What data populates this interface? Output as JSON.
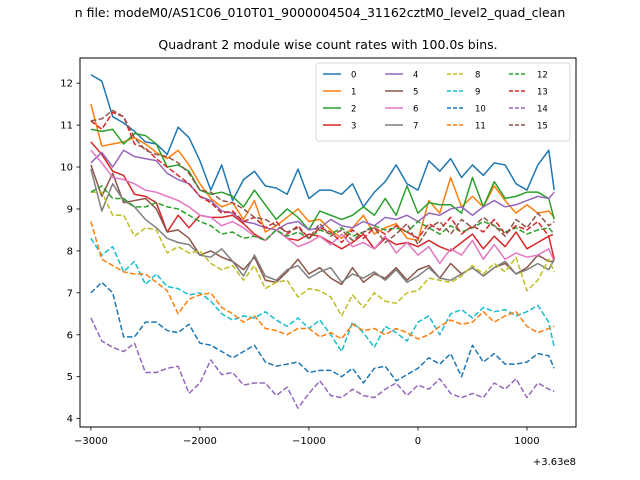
{
  "figure": {
    "suptitle": "n file: modeM0/AS1C06_010T01_9000004504_31162cztM0_level2_quad_clean",
    "title": "Quadrant 2 module wise count rates with 100.0s bins.",
    "x_offset_label": "+3.63e8"
  },
  "chart_data": {
    "type": "line",
    "title": "Quadrant 2 module wise count rates with 100.0s bins.",
    "xlabel": "",
    "ylabel": "",
    "x_offset": 363000000,
    "xlim": [
      -3100,
      1450
    ],
    "ylim": [
      3.8,
      12.6
    ],
    "x_ticks": [
      -3000,
      -2000,
      -1000,
      0,
      1000
    ],
    "x_tick_labels": [
      "−3000",
      "−2000",
      "−1000",
      "0",
      "1000"
    ],
    "y_ticks": [
      4,
      5,
      6,
      7,
      8,
      9,
      10,
      11,
      12
    ],
    "y_tick_labels": [
      "4",
      "5",
      "6",
      "7",
      "8",
      "9",
      "10",
      "11",
      "12"
    ],
    "grid": false,
    "legend_position": "top-right",
    "x": [
      -3000,
      -2900,
      -2800,
      -2700,
      -2600,
      -2500,
      -2400,
      -2300,
      -2200,
      -2100,
      -2000,
      -1900,
      -1800,
      -1700,
      -1600,
      -1500,
      -1400,
      -1300,
      -1200,
      -1100,
      -1000,
      -900,
      -800,
      -700,
      -600,
      -500,
      -400,
      -300,
      -200,
      -100,
      0,
      100,
      200,
      300,
      400,
      500,
      600,
      700,
      800,
      900,
      1000,
      1100,
      1200,
      1250
    ],
    "series": [
      {
        "name": "0",
        "color": "#1f77b4",
        "style": "solid",
        "values": [
          12.2,
          12.05,
          11.2,
          11.05,
          10.85,
          10.6,
          10.55,
          10.3,
          10.95,
          10.7,
          10.15,
          9.45,
          10.05,
          9.2,
          9.7,
          9.9,
          9.55,
          9.5,
          9.35,
          9.95,
          9.25,
          9.45,
          9.45,
          9.35,
          9.6,
          9.05,
          9.4,
          9.65,
          10.05,
          9.6,
          9.45,
          10.15,
          9.9,
          10.2,
          9.75,
          10.05,
          9.8,
          10.1,
          10.05,
          9.6,
          9.45,
          10.05,
          10.4,
          9.45
        ]
      },
      {
        "name": "1",
        "color": "#ff7f0e",
        "style": "solid",
        "values": [
          11.5,
          10.5,
          10.55,
          10.6,
          10.7,
          10.55,
          10.35,
          10.2,
          10.4,
          10.05,
          9.6,
          9.25,
          9.05,
          9.15,
          8.75,
          9.2,
          8.45,
          8.6,
          8.8,
          9.0,
          8.7,
          8.75,
          8.5,
          8.3,
          8.55,
          8.85,
          8.4,
          8.55,
          8.65,
          8.3,
          8.25,
          9.2,
          8.9,
          9.75,
          9.05,
          9.3,
          9.05,
          9.55,
          9.2,
          8.9,
          9.1,
          8.9,
          8.95,
          8.8
        ]
      },
      {
        "name": "2",
        "color": "#2ca02c",
        "style": "solid",
        "values": [
          10.9,
          10.85,
          10.9,
          10.55,
          10.8,
          10.75,
          10.55,
          10.0,
          10.05,
          9.9,
          9.45,
          9.35,
          9.4,
          9.3,
          9.05,
          9.45,
          9.1,
          8.75,
          9.0,
          8.8,
          8.5,
          8.95,
          8.85,
          8.75,
          8.85,
          9.05,
          8.85,
          9.25,
          8.85,
          9.55,
          8.9,
          9.15,
          9.1,
          9.1,
          8.9,
          9.75,
          9.05,
          9.65,
          9.25,
          9.3,
          9.4,
          9.4,
          9.25,
          8.75
        ]
      },
      {
        "name": "3",
        "color": "#d62728",
        "style": "solid",
        "values": [
          10.6,
          10.3,
          9.9,
          9.8,
          9.35,
          9.3,
          9.15,
          8.45,
          8.85,
          8.55,
          8.85,
          8.8,
          8.8,
          8.85,
          8.65,
          8.4,
          8.25,
          8.5,
          8.3,
          8.25,
          8.4,
          8.35,
          8.2,
          8.05,
          8.2,
          8.4,
          8.05,
          8.3,
          8.15,
          8.2,
          8.1,
          8.25,
          8.1,
          8.0,
          8.2,
          8.4,
          8.05,
          8.35,
          8.1,
          8.45,
          8.05,
          8.2,
          8.35,
          7.8
        ]
      },
      {
        "name": "4",
        "color": "#9467bd",
        "style": "solid",
        "values": [
          10.1,
          10.35,
          10.0,
          10.4,
          10.25,
          10.2,
          10.15,
          9.85,
          9.7,
          9.6,
          9.3,
          9.2,
          8.95,
          8.9,
          8.7,
          8.65,
          8.55,
          8.5,
          8.65,
          8.7,
          8.5,
          8.55,
          8.75,
          8.6,
          8.55,
          8.7,
          8.6,
          8.8,
          8.75,
          8.85,
          8.7,
          8.9,
          8.85,
          9.0,
          9.05,
          8.85,
          9.05,
          9.2,
          9.05,
          9.1,
          9.2,
          9.3,
          9.25,
          9.4
        ]
      },
      {
        "name": "5",
        "color": "#8c564b",
        "style": "solid",
        "values": [
          10.05,
          9.3,
          9.85,
          9.15,
          9.2,
          9.25,
          9.0,
          8.45,
          8.5,
          8.3,
          7.9,
          8.0,
          7.85,
          7.75,
          7.55,
          7.85,
          7.3,
          7.25,
          7.5,
          7.8,
          7.45,
          7.6,
          7.35,
          7.2,
          7.6,
          7.25,
          7.45,
          7.35,
          7.6,
          7.3,
          7.55,
          7.65,
          7.35,
          7.7,
          7.45,
          7.6,
          7.4,
          7.6,
          7.7,
          7.45,
          7.6,
          7.9,
          7.75,
          7.75
        ]
      },
      {
        "name": "6",
        "color": "#e377c2",
        "style": "solid",
        "values": [
          10.4,
          10.1,
          9.75,
          9.7,
          9.6,
          9.45,
          9.4,
          9.3,
          9.2,
          9.05,
          8.85,
          8.8,
          8.6,
          8.7,
          8.55,
          8.35,
          8.25,
          8.5,
          8.3,
          8.1,
          8.2,
          8.35,
          8.15,
          8.4,
          8.1,
          8.2,
          8.05,
          8.35,
          7.95,
          8.2,
          7.9,
          8.1,
          7.7,
          8.05,
          7.9,
          8.25,
          7.8,
          8.15,
          7.8,
          7.95,
          7.85,
          7.9,
          8.05,
          7.75
        ]
      },
      {
        "name": "7",
        "color": "#7f7f7f",
        "style": "solid",
        "values": [
          9.95,
          8.95,
          9.6,
          9.2,
          9.05,
          8.75,
          8.55,
          8.3,
          8.2,
          8.15,
          7.9,
          7.85,
          8.05,
          7.75,
          7.4,
          7.9,
          7.4,
          7.3,
          7.55,
          7.65,
          7.35,
          7.5,
          7.6,
          7.25,
          7.45,
          7.35,
          7.5,
          7.3,
          7.55,
          7.25,
          7.4,
          7.6,
          7.35,
          7.3,
          7.45,
          7.6,
          7.4,
          7.6,
          7.75,
          7.45,
          7.55,
          7.7,
          7.55,
          7.8
        ]
      },
      {
        "name": "8",
        "color": "#bcbd22",
        "style": "dashed",
        "values": [
          9.4,
          9.4,
          8.85,
          8.85,
          8.35,
          8.55,
          8.5,
          7.95,
          8.1,
          7.95,
          8.0,
          7.7,
          7.55,
          7.65,
          7.3,
          7.65,
          7.1,
          7.25,
          7.3,
          6.9,
          7.1,
          7.05,
          6.9,
          6.45,
          6.95,
          6.65,
          7.0,
          6.8,
          6.75,
          7.0,
          7.05,
          7.35,
          7.3,
          7.25,
          7.4,
          7.65,
          7.45,
          7.7,
          7.5,
          7.85,
          7.05,
          7.3,
          7.8,
          7.5
        ]
      },
      {
        "name": "9",
        "color": "#17becf",
        "style": "dashed",
        "values": [
          8.3,
          7.9,
          8.1,
          7.5,
          7.75,
          7.2,
          7.45,
          7.15,
          7.1,
          6.95,
          7.0,
          6.8,
          6.5,
          6.35,
          6.45,
          6.4,
          6.55,
          6.35,
          6.2,
          6.4,
          6.15,
          6.35,
          6.0,
          5.6,
          6.3,
          6.05,
          5.7,
          6.2,
          6.05,
          5.85,
          6.3,
          6.45,
          6.0,
          6.5,
          6.6,
          6.4,
          6.65,
          6.55,
          6.6,
          6.45,
          6.55,
          6.7,
          6.3,
          5.7
        ]
      },
      {
        "name": "10",
        "color": "#1f77b4",
        "style": "dashed",
        "values": [
          7.0,
          7.25,
          7.0,
          5.95,
          5.95,
          6.3,
          6.3,
          6.1,
          6.05,
          6.25,
          5.8,
          5.75,
          5.6,
          5.45,
          5.6,
          5.75,
          5.35,
          5.25,
          5.3,
          5.35,
          5.1,
          5.15,
          5.15,
          5.0,
          5.2,
          4.85,
          5.2,
          5.25,
          4.9,
          5.05,
          5.2,
          5.45,
          5.3,
          5.55,
          5.0,
          5.75,
          5.35,
          5.55,
          5.3,
          5.3,
          5.35,
          5.55,
          5.5,
          5.2
        ]
      },
      {
        "name": "11",
        "color": "#ff7f0e",
        "style": "dashed",
        "values": [
          8.7,
          7.8,
          7.65,
          7.5,
          7.45,
          7.45,
          7.25,
          7.05,
          6.5,
          6.85,
          6.95,
          7.0,
          6.65,
          6.5,
          6.3,
          6.45,
          6.15,
          6.1,
          6.0,
          6.15,
          6.15,
          5.95,
          6.05,
          5.9,
          6.25,
          6.1,
          6.15,
          6.0,
          6.15,
          6.05,
          5.9,
          6.0,
          6.2,
          6.35,
          6.25,
          6.3,
          6.55,
          6.3,
          6.45,
          6.55,
          6.2,
          6.05,
          6.15,
          6.2
        ]
      },
      {
        "name": "12",
        "color": "#2ca02c",
        "style": "dashed",
        "values": [
          9.4,
          9.55,
          9.25,
          9.25,
          9.05,
          9.05,
          9.15,
          9.05,
          9.0,
          8.85,
          8.7,
          8.6,
          8.4,
          8.45,
          8.3,
          8.35,
          8.25,
          8.5,
          8.35,
          8.45,
          8.3,
          8.5,
          8.4,
          8.55,
          8.35,
          8.45,
          8.6,
          8.5,
          8.55,
          8.45,
          8.7,
          8.55,
          8.4,
          8.6,
          8.45,
          8.55,
          8.7,
          8.6,
          8.45,
          8.55,
          8.4,
          8.5,
          8.55,
          8.4
        ]
      },
      {
        "name": "13",
        "color": "#d62728",
        "style": "dashed",
        "values": [
          11.1,
          10.9,
          11.3,
          11.2,
          10.55,
          10.45,
          10.2,
          10.0,
          9.8,
          9.6,
          9.3,
          9.15,
          8.9,
          8.95,
          8.7,
          8.8,
          8.55,
          8.7,
          8.4,
          8.6,
          8.3,
          8.55,
          8.45,
          8.2,
          8.5,
          8.3,
          8.55,
          8.4,
          8.6,
          8.45,
          8.3,
          8.65,
          8.5,
          8.8,
          8.4,
          8.6,
          8.45,
          8.75,
          8.4,
          8.6,
          8.5,
          8.7,
          8.35,
          8.4
        ]
      },
      {
        "name": "14",
        "color": "#9467bd",
        "style": "dashed",
        "values": [
          6.4,
          5.85,
          5.7,
          5.6,
          5.8,
          5.1,
          5.1,
          5.2,
          5.25,
          4.6,
          4.85,
          5.4,
          5.05,
          5.1,
          4.8,
          4.85,
          4.85,
          4.55,
          4.75,
          4.25,
          4.6,
          4.9,
          4.55,
          4.5,
          4.7,
          4.55,
          4.5,
          4.7,
          4.85,
          4.55,
          4.8,
          4.7,
          4.95,
          4.6,
          4.5,
          4.6,
          4.5,
          4.85,
          4.7,
          4.95,
          4.5,
          4.85,
          4.7,
          4.65
        ]
      },
      {
        "name": "15",
        "color": "#8c564b",
        "style": "dashed",
        "values": [
          11.1,
          11.15,
          11.35,
          11.2,
          10.7,
          10.4,
          10.3,
          10.25,
          10.1,
          9.85,
          9.45,
          9.4,
          9.2,
          9.15,
          9.0,
          8.8,
          8.75,
          8.6,
          8.45,
          8.55,
          8.3,
          8.65,
          8.35,
          8.5,
          8.25,
          8.45,
          8.55,
          8.2,
          8.4,
          8.65,
          8.15,
          8.55,
          8.7,
          8.4,
          8.75,
          8.55,
          8.8,
          8.6,
          8.35,
          8.75,
          8.55,
          8.9,
          8.6,
          8.7
        ]
      }
    ]
  }
}
